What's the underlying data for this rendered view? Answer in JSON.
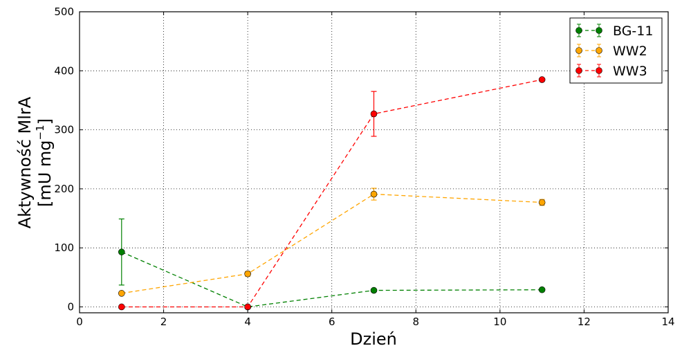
{
  "chart_data": {
    "type": "line",
    "title": "",
    "xlabel": "Dzień",
    "ylabel_line1": "Aktywność MlrA",
    "ylabel_line2_prefix": "[mU mg",
    "ylabel_line2_sup": "−1",
    "ylabel_line2_suffix": "]",
    "xlim": [
      0,
      14
    ],
    "ylim": [
      -10,
      500
    ],
    "xticks": [
      "0",
      "2",
      "4",
      "6",
      "8",
      "10",
      "12",
      "14"
    ],
    "yticks": [
      "0",
      "100",
      "200",
      "300",
      "400",
      "500"
    ],
    "grid": true,
    "legend_position": "top-right",
    "series": [
      {
        "name": "BG-11",
        "color": "#008000",
        "x": [
          1,
          4,
          7,
          11
        ],
        "y": [
          93,
          0,
          28,
          29
        ],
        "err": [
          56,
          0,
          0,
          0
        ]
      },
      {
        "name": "WW2",
        "color": "#ffa500",
        "x": [
          1,
          4,
          7,
          11
        ],
        "y": [
          23,
          56,
          191,
          177
        ],
        "err": [
          0,
          4,
          10,
          5
        ]
      },
      {
        "name": "WW3",
        "color": "#ff0000",
        "x": [
          1,
          4,
          7,
          11
        ],
        "y": [
          0,
          0,
          327,
          385
        ],
        "err": [
          0,
          0,
          38,
          0
        ]
      }
    ]
  }
}
